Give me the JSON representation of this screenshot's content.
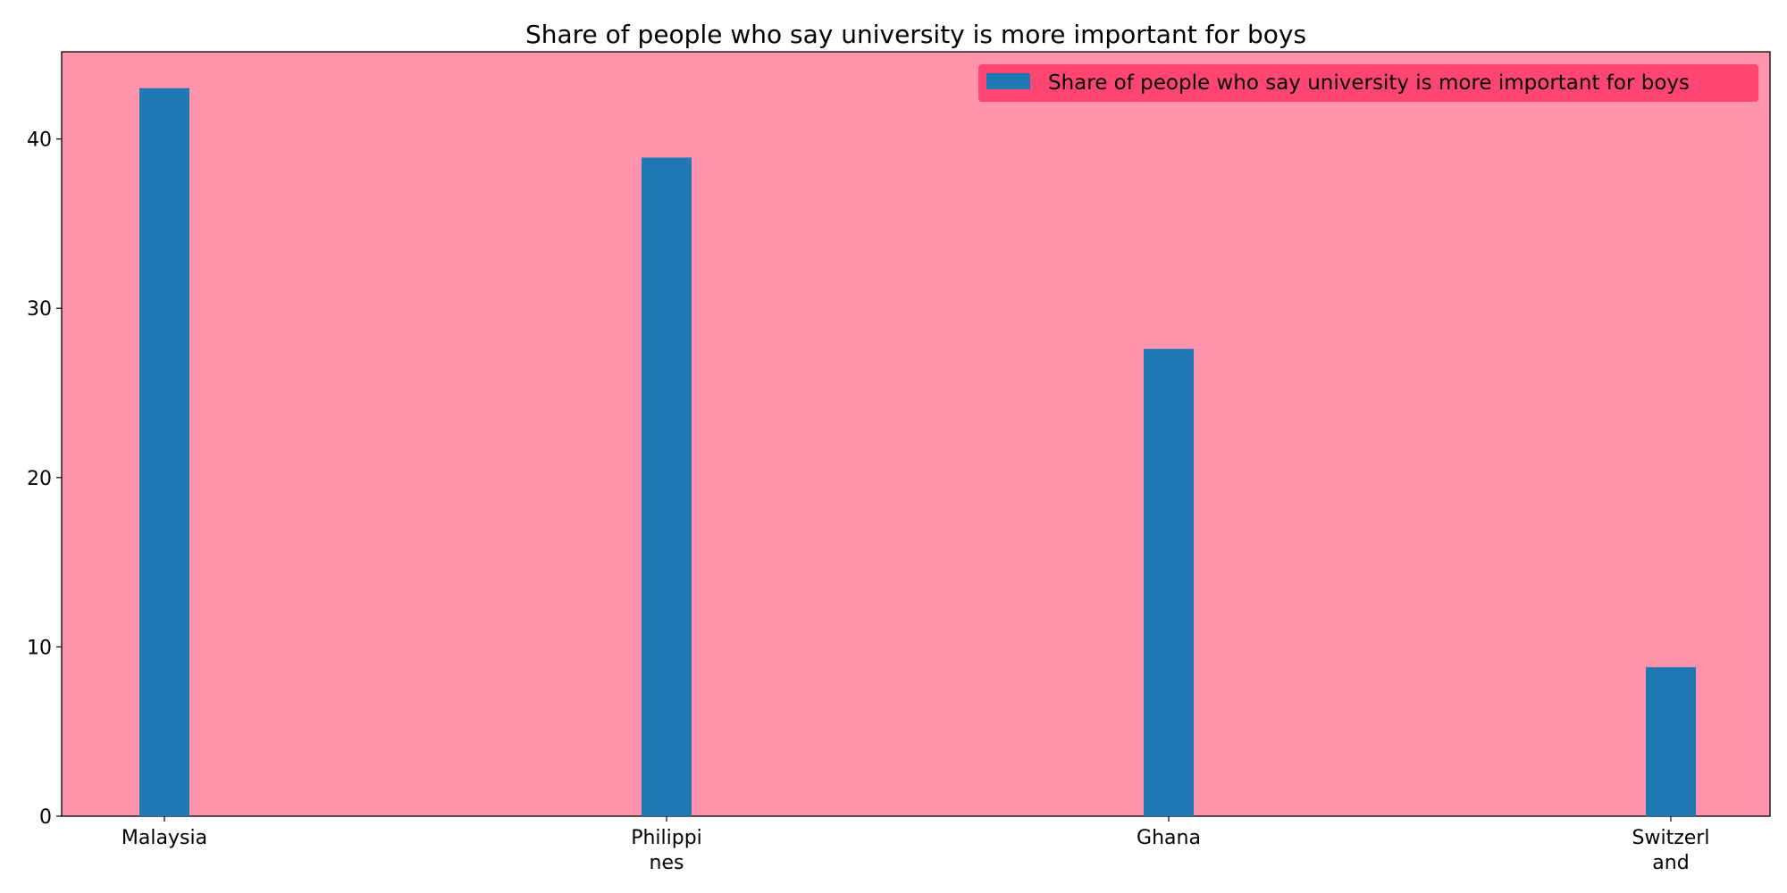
{
  "chart_data": {
    "type": "bar",
    "title": "Share of people who say university is more important for boys",
    "xlabel": "",
    "ylabel": "",
    "categories": [
      [
        "Malaysia"
      ],
      [
        "Philippi",
        "nes"
      ],
      [
        "Ghana"
      ],
      [
        "Switzerl",
        "and"
      ]
    ],
    "series": [
      {
        "name": "Share of people who say university is more important for boys",
        "values": [
          43.0,
          38.9,
          27.6,
          8.8
        ],
        "color": "#1f77b4"
      }
    ],
    "ylim": [
      0,
      45.15
    ],
    "yticks": [
      0,
      10,
      20,
      30,
      40
    ],
    "grid": false,
    "legend_position": "top-right",
    "colors": {
      "plot_background": "#ff94ab",
      "legend_background": "#ff4572",
      "bar": "#1f77b4"
    }
  }
}
